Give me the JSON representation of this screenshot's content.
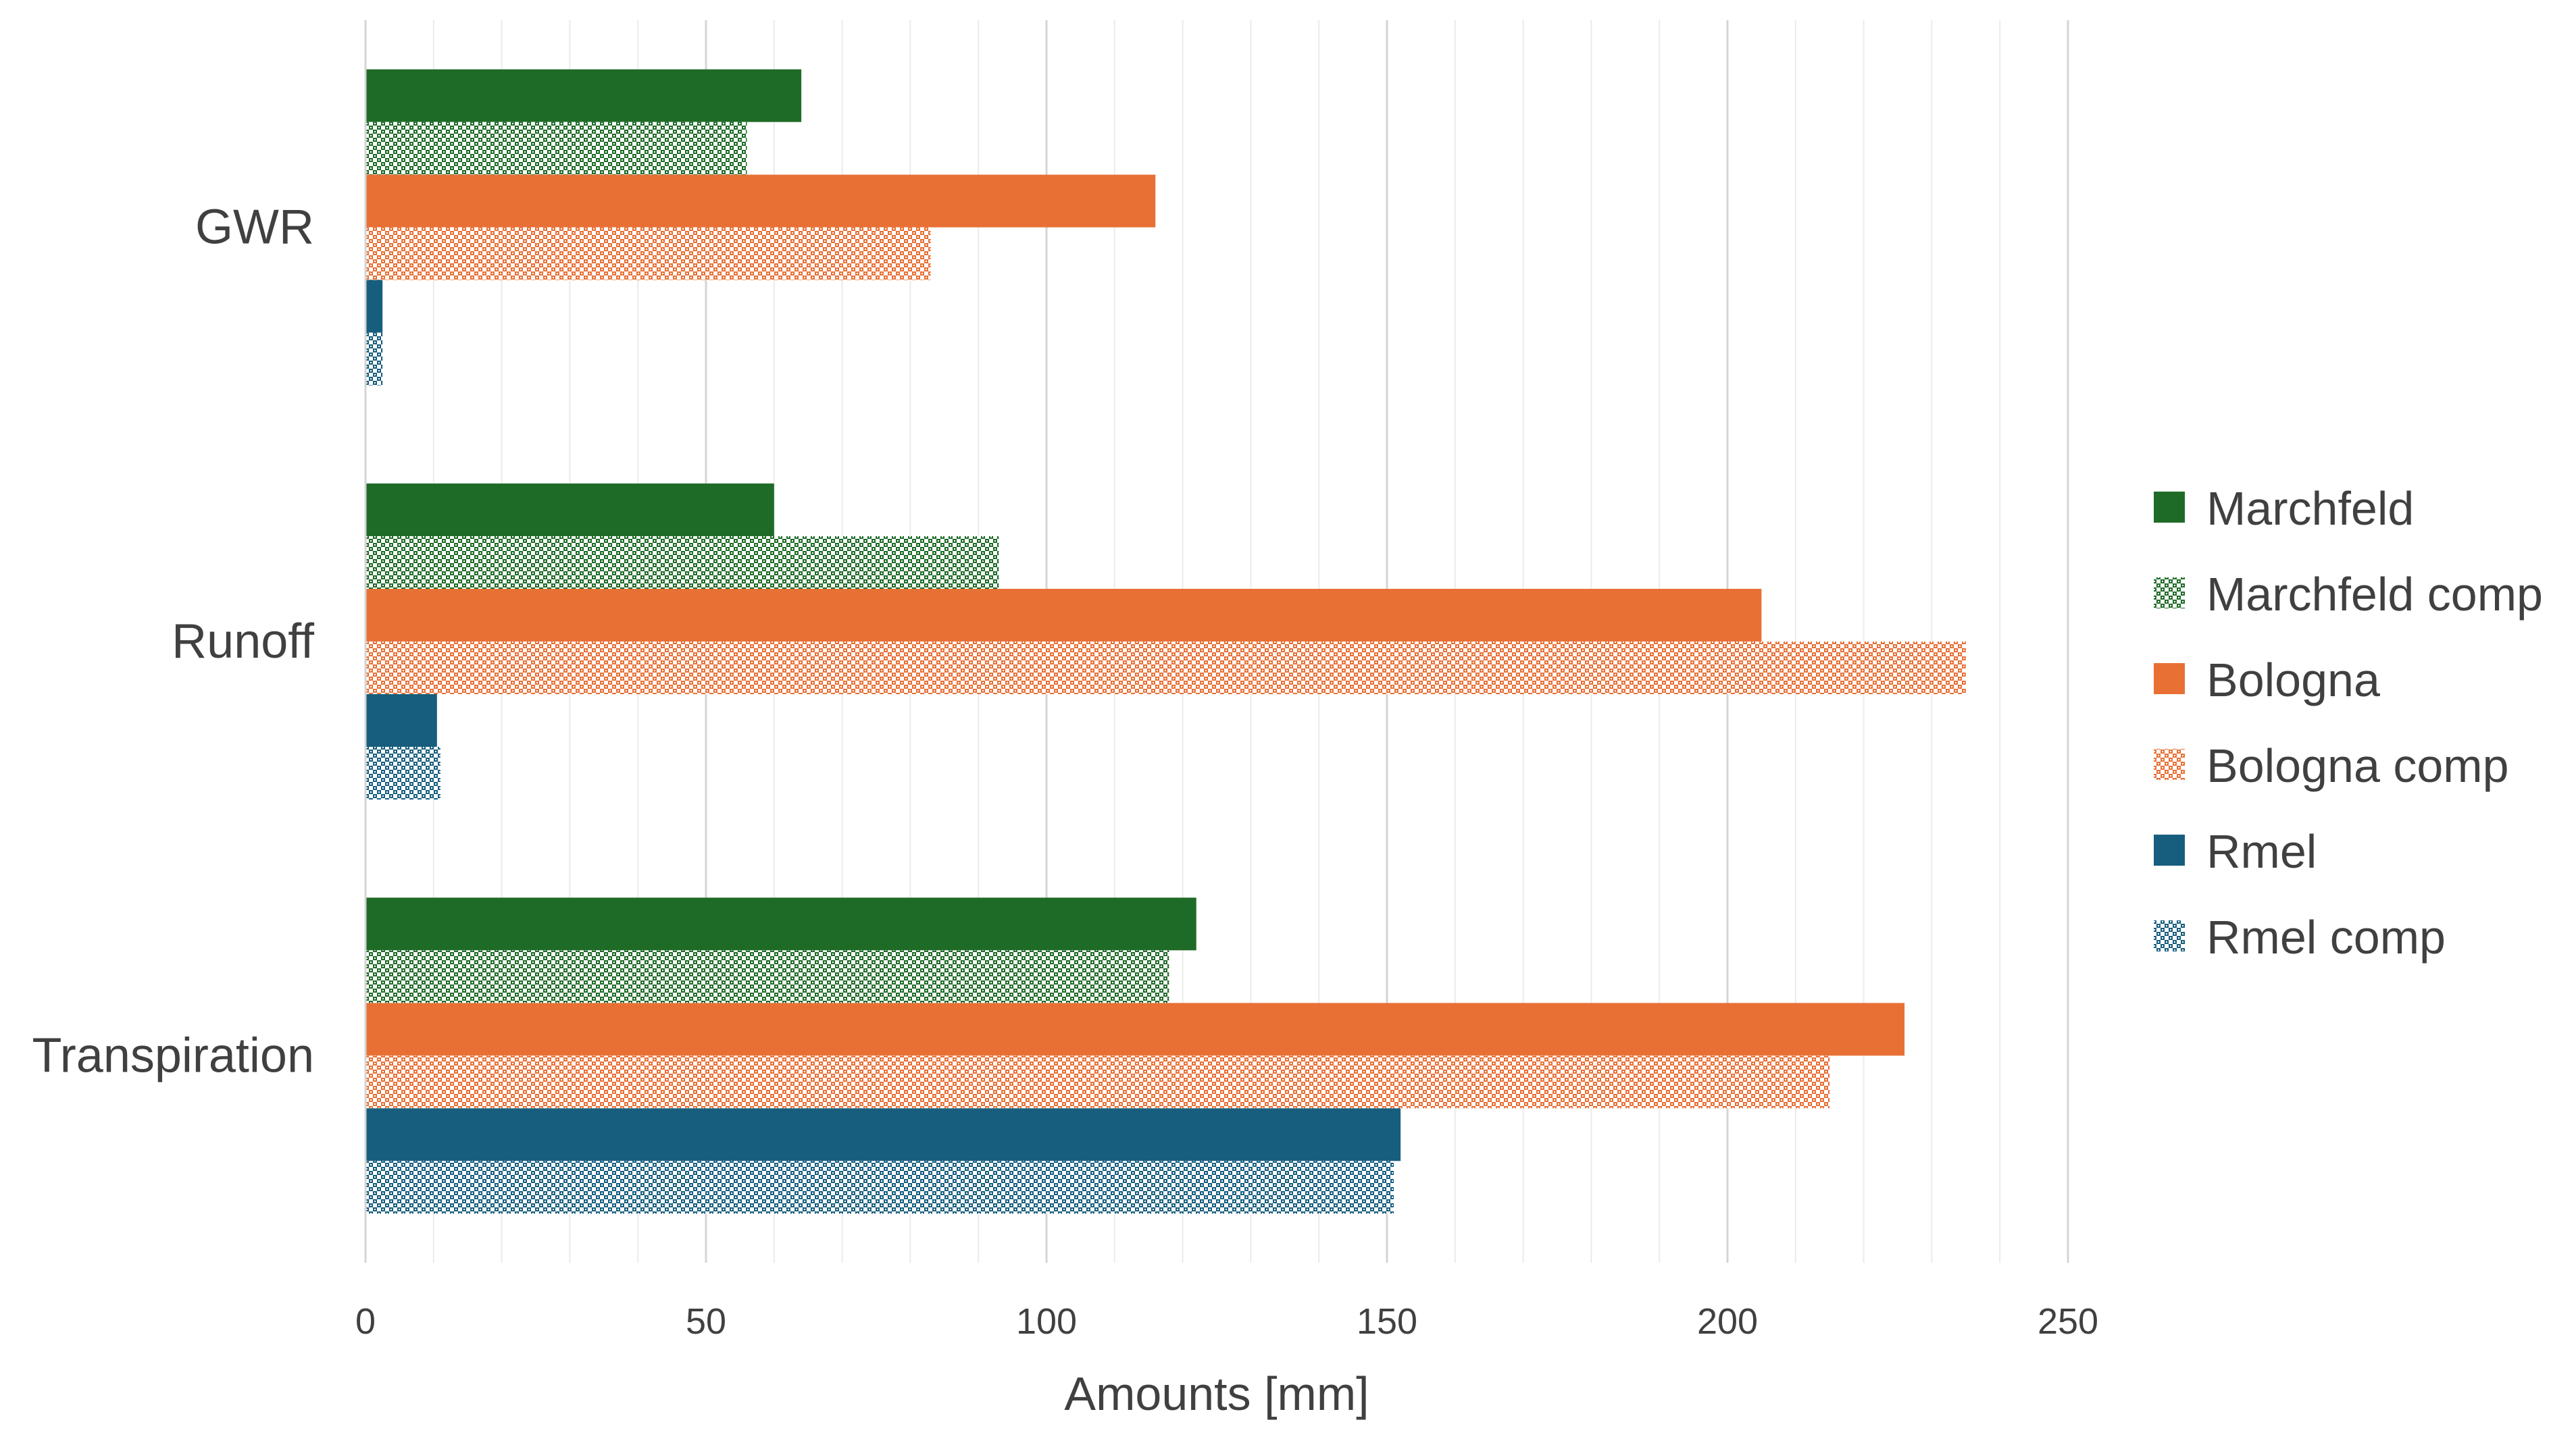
{
  "chart_data": {
    "type": "bar",
    "orientation": "horizontal",
    "categories": [
      "GWR",
      "Runoff",
      "Transpiration"
    ],
    "series": [
      {
        "name": "Marchfeld",
        "color": "#1E6B27",
        "pattern": "solid",
        "values": [
          64,
          60,
          122
        ]
      },
      {
        "name": "Marchfeld comp",
        "color": "#1E6B27",
        "pattern": "hatched",
        "values": [
          56,
          93,
          118
        ]
      },
      {
        "name": "Bologna",
        "color": "#E87035",
        "pattern": "solid",
        "values": [
          116,
          205,
          226
        ]
      },
      {
        "name": "Bologna comp",
        "color": "#E87035",
        "pattern": "hatched",
        "values": [
          83,
          235,
          215
        ]
      },
      {
        "name": "Rmel",
        "color": "#175E7E",
        "pattern": "solid",
        "values": [
          2.5,
          10.5,
          152
        ]
      },
      {
        "name": "Rmel comp",
        "color": "#175E7E",
        "pattern": "hatched",
        "values": [
          2.5,
          11,
          151
        ]
      }
    ],
    "xlabel": "Amounts [mm]",
    "ylabel": "",
    "xlim": [
      0,
      250
    ],
    "xticks": [
      "0",
      "50",
      "100",
      "150",
      "200",
      "250"
    ],
    "grid": "vertical major and minor",
    "legend": "right"
  }
}
